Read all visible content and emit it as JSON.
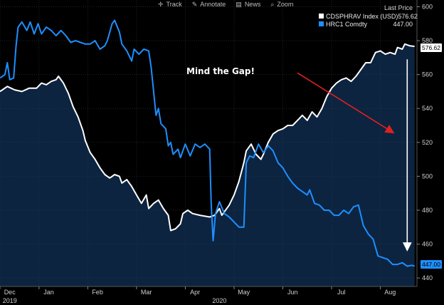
{
  "toolbar": {
    "items": [
      {
        "label": "Track",
        "icon": "crosshair-icon"
      },
      {
        "label": "Annotate",
        "icon": "pencil-icon"
      },
      {
        "label": "News",
        "icon": "news-icon"
      },
      {
        "label": "Zoom",
        "icon": "zoom-icon"
      }
    ]
  },
  "legend": {
    "header": "Last Price",
    "entries": [
      {
        "name": "CDSPHRAV Index (USD)",
        "value": "576.62",
        "color": "#ffffff"
      },
      {
        "name": "HRC1 Comdty",
        "value": "447.00",
        "color": "#1e8fff"
      }
    ]
  },
  "annotation": "Mind the Gap!",
  "price_tags": [
    {
      "value": "576.62",
      "bg": "#ffffff",
      "fg": "#000000"
    },
    {
      "value": "447.00",
      "bg": "#1e8fff",
      "fg": "#000000"
    }
  ],
  "chart_data": {
    "type": "line",
    "title": "",
    "xlabel": "",
    "ylabel": "",
    "ylim": [
      435,
      604
    ],
    "y_ticks": [
      440,
      460,
      480,
      500,
      520,
      540,
      560,
      580,
      600
    ],
    "x_range": [
      0,
      8.55
    ],
    "x_ticks": [
      {
        "label": "Dec",
        "x": 0.2
      },
      {
        "label": "Jan",
        "x": 1.0
      },
      {
        "label": "Feb",
        "x": 2.0
      },
      {
        "label": "Mar",
        "x": 3.0
      },
      {
        "label": "Apr",
        "x": 4.0
      },
      {
        "label": "May",
        "x": 5.0
      },
      {
        "label": "Jun",
        "x": 6.0
      },
      {
        "label": "Jul",
        "x": 7.0
      },
      {
        "label": "Aug",
        "x": 8.0
      }
    ],
    "year_labels": [
      {
        "label": "2019",
        "x": 0.2
      },
      {
        "label": "2020",
        "x": 4.5
      }
    ],
    "grid": true,
    "series": [
      {
        "name": "CDSPHRAV Index (USD)",
        "color": "#ffffff",
        "points": [
          [
            0.0,
            550
          ],
          [
            0.15,
            553
          ],
          [
            0.3,
            551
          ],
          [
            0.45,
            550
          ],
          [
            0.6,
            552
          ],
          [
            0.75,
            552
          ],
          [
            0.85,
            555
          ],
          [
            0.95,
            554
          ],
          [
            1.05,
            556
          ],
          [
            1.15,
            557
          ],
          [
            1.2,
            559
          ],
          [
            1.3,
            555
          ],
          [
            1.4,
            549
          ],
          [
            1.5,
            541
          ],
          [
            1.6,
            535
          ],
          [
            1.7,
            527
          ],
          [
            1.75,
            521
          ],
          [
            1.85,
            514
          ],
          [
            1.95,
            510
          ],
          [
            2.05,
            505
          ],
          [
            2.15,
            501
          ],
          [
            2.25,
            499
          ],
          [
            2.35,
            501
          ],
          [
            2.45,
            500
          ],
          [
            2.5,
            496
          ],
          [
            2.6,
            498
          ],
          [
            2.7,
            494
          ],
          [
            2.8,
            489
          ],
          [
            2.9,
            484
          ],
          [
            3.0,
            489
          ],
          [
            3.05,
            481
          ],
          [
            3.15,
            484
          ],
          [
            3.25,
            486
          ],
          [
            3.35,
            481
          ],
          [
            3.45,
            477
          ],
          [
            3.5,
            468
          ],
          [
            3.6,
            469
          ],
          [
            3.7,
            472
          ],
          [
            3.75,
            478
          ],
          [
            3.85,
            480
          ],
          [
            3.95,
            478
          ],
          [
            4.1,
            477
          ],
          [
            4.3,
            476
          ],
          [
            4.4,
            477
          ],
          [
            4.5,
            481
          ],
          [
            4.55,
            477
          ],
          [
            4.7,
            483
          ],
          [
            4.8,
            489
          ],
          [
            4.9,
            497
          ],
          [
            5.0,
            508
          ],
          [
            5.05,
            515
          ],
          [
            5.15,
            519
          ],
          [
            5.25,
            513
          ],
          [
            5.35,
            510
          ],
          [
            5.4,
            513
          ],
          [
            5.5,
            520
          ],
          [
            5.6,
            525
          ],
          [
            5.7,
            527
          ],
          [
            5.8,
            528
          ],
          [
            5.9,
            530
          ],
          [
            6.0,
            530
          ],
          [
            6.1,
            533
          ],
          [
            6.2,
            536
          ],
          [
            6.3,
            533
          ],
          [
            6.4,
            538
          ],
          [
            6.5,
            535
          ],
          [
            6.6,
            540
          ],
          [
            6.7,
            547
          ],
          [
            6.8,
            552
          ],
          [
            6.9,
            555
          ],
          [
            7.0,
            557
          ],
          [
            7.1,
            558
          ],
          [
            7.2,
            556
          ],
          [
            7.3,
            559
          ],
          [
            7.4,
            563
          ],
          [
            7.5,
            567
          ],
          [
            7.6,
            567
          ],
          [
            7.7,
            573
          ],
          [
            7.8,
            574
          ],
          [
            7.9,
            572
          ],
          [
            8.0,
            573
          ],
          [
            8.1,
            572
          ],
          [
            8.15,
            576
          ],
          [
            8.25,
            575
          ],
          [
            8.3,
            578
          ],
          [
            8.4,
            577
          ],
          [
            8.5,
            576.62
          ]
        ]
      },
      {
        "name": "HRC1 Comdty",
        "color": "#1e8fff",
        "points": [
          [
            0.0,
            558
          ],
          [
            0.1,
            560
          ],
          [
            0.15,
            567
          ],
          [
            0.2,
            557
          ],
          [
            0.28,
            558
          ],
          [
            0.33,
            577
          ],
          [
            0.37,
            588
          ],
          [
            0.45,
            591
          ],
          [
            0.55,
            586
          ],
          [
            0.62,
            591
          ],
          [
            0.7,
            584
          ],
          [
            0.78,
            590
          ],
          [
            0.85,
            584
          ],
          [
            0.95,
            588
          ],
          [
            1.05,
            586
          ],
          [
            1.15,
            583
          ],
          [
            1.25,
            586
          ],
          [
            1.35,
            583
          ],
          [
            1.45,
            579
          ],
          [
            1.55,
            580
          ],
          [
            1.65,
            579
          ],
          [
            1.75,
            578
          ],
          [
            1.85,
            578
          ],
          [
            1.95,
            580
          ],
          [
            2.05,
            575
          ],
          [
            2.15,
            577
          ],
          [
            2.2,
            580
          ],
          [
            2.3,
            590
          ],
          [
            2.35,
            592
          ],
          [
            2.45,
            585
          ],
          [
            2.5,
            578
          ],
          [
            2.6,
            574
          ],
          [
            2.7,
            568
          ],
          [
            2.75,
            575
          ],
          [
            2.85,
            572
          ],
          [
            2.95,
            575
          ],
          [
            3.05,
            574
          ],
          [
            3.1,
            564
          ],
          [
            3.2,
            536
          ],
          [
            3.25,
            540
          ],
          [
            3.3,
            531
          ],
          [
            3.4,
            528
          ],
          [
            3.45,
            518
          ],
          [
            3.5,
            520
          ],
          [
            3.55,
            513
          ],
          [
            3.65,
            516
          ],
          [
            3.7,
            511
          ],
          [
            3.8,
            519
          ],
          [
            3.9,
            512
          ],
          [
            4.0,
            519
          ],
          [
            4.1,
            517
          ],
          [
            4.2,
            519
          ],
          [
            4.3,
            516
          ],
          [
            4.33,
            484
          ],
          [
            4.37,
            462
          ],
          [
            4.42,
            478
          ],
          [
            4.5,
            485
          ],
          [
            4.6,
            478
          ],
          [
            4.7,
            476
          ],
          [
            4.8,
            473
          ],
          [
            4.9,
            470
          ],
          [
            5.0,
            470
          ],
          [
            5.05,
            508
          ],
          [
            5.12,
            512
          ],
          [
            5.2,
            511
          ],
          [
            5.3,
            519
          ],
          [
            5.4,
            514
          ],
          [
            5.5,
            518
          ],
          [
            5.6,
            515
          ],
          [
            5.7,
            508
          ],
          [
            5.8,
            505
          ],
          [
            5.9,
            500
          ],
          [
            6.0,
            496
          ],
          [
            6.1,
            493
          ],
          [
            6.2,
            491
          ],
          [
            6.3,
            489
          ],
          [
            6.35,
            492
          ],
          [
            6.45,
            484
          ],
          [
            6.55,
            483
          ],
          [
            6.65,
            480
          ],
          [
            6.75,
            480
          ],
          [
            6.85,
            477
          ],
          [
            6.95,
            477
          ],
          [
            7.05,
            480
          ],
          [
            7.15,
            478
          ],
          [
            7.25,
            482
          ],
          [
            7.35,
            483
          ],
          [
            7.45,
            471
          ],
          [
            7.55,
            466
          ],
          [
            7.65,
            463
          ],
          [
            7.75,
            453
          ],
          [
            7.85,
            452
          ],
          [
            7.95,
            451
          ],
          [
            8.05,
            448
          ],
          [
            8.15,
            448
          ],
          [
            8.25,
            449
          ],
          [
            8.35,
            447
          ],
          [
            8.45,
            447.5
          ],
          [
            8.5,
            447
          ]
        ]
      }
    ],
    "shaded_series": "CDSPHRAV Index (USD)",
    "annotations": [
      {
        "text": "Mind the Gap!",
        "type": "text"
      },
      {
        "type": "arrow",
        "color": "#e02020",
        "from": [
          6.1,
          561
        ],
        "to": [
          8.05,
          526
        ]
      },
      {
        "type": "arrow",
        "color": "#ffffff",
        "from": [
          8.35,
          569
        ],
        "to": [
          8.35,
          457
        ]
      }
    ]
  }
}
